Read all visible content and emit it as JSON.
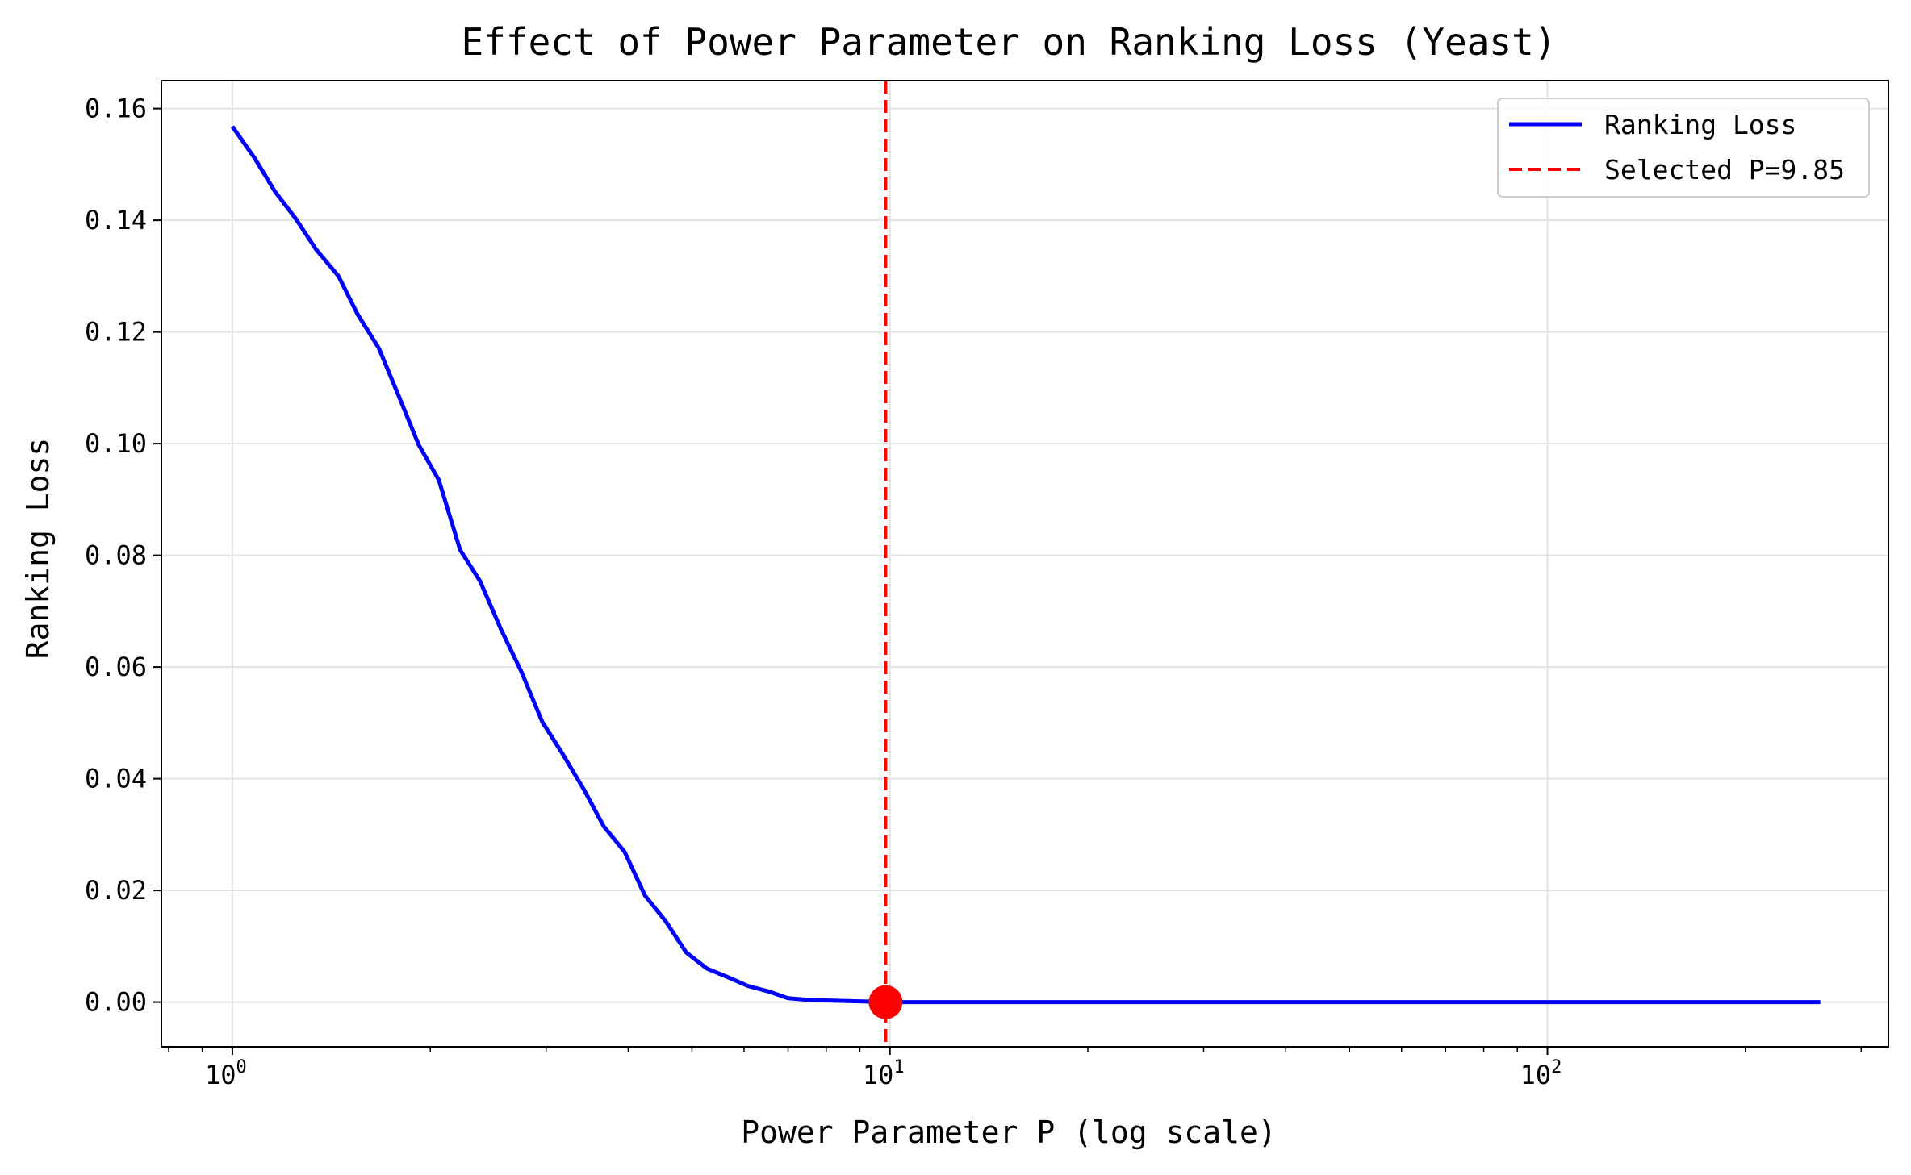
{
  "chart_data": {
    "type": "line",
    "title": "Effect of Power Parameter on Ranking Loss (Yeast)",
    "xlabel": "Power Parameter P (log scale)",
    "ylabel": "Ranking Loss",
    "xscale": "log",
    "xlim": [
      0.78,
      330
    ],
    "ylim": [
      -0.008,
      0.165
    ],
    "grid": true,
    "legend_position": "top-right",
    "x_ticks": [
      {
        "value": 1,
        "base": "10",
        "exp": "0"
      },
      {
        "value": 10,
        "base": "10",
        "exp": "1"
      },
      {
        "value": 100,
        "base": "10",
        "exp": "2"
      }
    ],
    "y_ticks": [
      {
        "value": 0.0,
        "label": "0.00"
      },
      {
        "value": 0.02,
        "label": "0.02"
      },
      {
        "value": 0.04,
        "label": "0.04"
      },
      {
        "value": 0.06,
        "label": "0.06"
      },
      {
        "value": 0.08,
        "label": "0.08"
      },
      {
        "value": 0.1,
        "label": "0.10"
      },
      {
        "value": 0.12,
        "label": "0.12"
      },
      {
        "value": 0.14,
        "label": "0.14"
      },
      {
        "value": 0.16,
        "label": "0.16"
      }
    ],
    "series": [
      {
        "name": "Ranking Loss",
        "color": "#0000ff",
        "style": "solid",
        "x": [
          1.0,
          1.08,
          1.16,
          1.25,
          1.34,
          1.45,
          1.55,
          1.67,
          1.79,
          1.92,
          2.06,
          2.22,
          2.38,
          2.56,
          2.75,
          2.96,
          3.18,
          3.42,
          3.67,
          3.95,
          4.24,
          4.56,
          4.9,
          5.27,
          5.66,
          6.08,
          6.54,
          7.0,
          7.5,
          8.0,
          8.6,
          9.2,
          9.85,
          12,
          20,
          50,
          100,
          150,
          260
        ],
        "y": [
          0.1568,
          0.1512,
          0.1452,
          0.1402,
          0.1348,
          0.13,
          0.1232,
          0.1171,
          0.1086,
          0.0998,
          0.0935,
          0.081,
          0.0754,
          0.0668,
          0.0592,
          0.0502,
          0.0444,
          0.0382,
          0.0315,
          0.0269,
          0.0191,
          0.0145,
          0.0089,
          0.006,
          0.0045,
          0.0029,
          0.0019,
          0.0007,
          0.0004,
          0.0003,
          0.0002,
          0.0001,
          0.0,
          0.0,
          0.0,
          0.0,
          0.0,
          0.0,
          0.0
        ]
      }
    ],
    "selected": {
      "name": "Selected P=9.85",
      "x": 9.85,
      "y": 0.0,
      "color": "#ff0000",
      "style": "dashed"
    },
    "legend": [
      {
        "label": "Ranking Loss",
        "color": "#0000ff",
        "style": "solid"
      },
      {
        "label": "Selected P=9.85",
        "color": "#ff0000",
        "style": "dashed"
      }
    ]
  }
}
